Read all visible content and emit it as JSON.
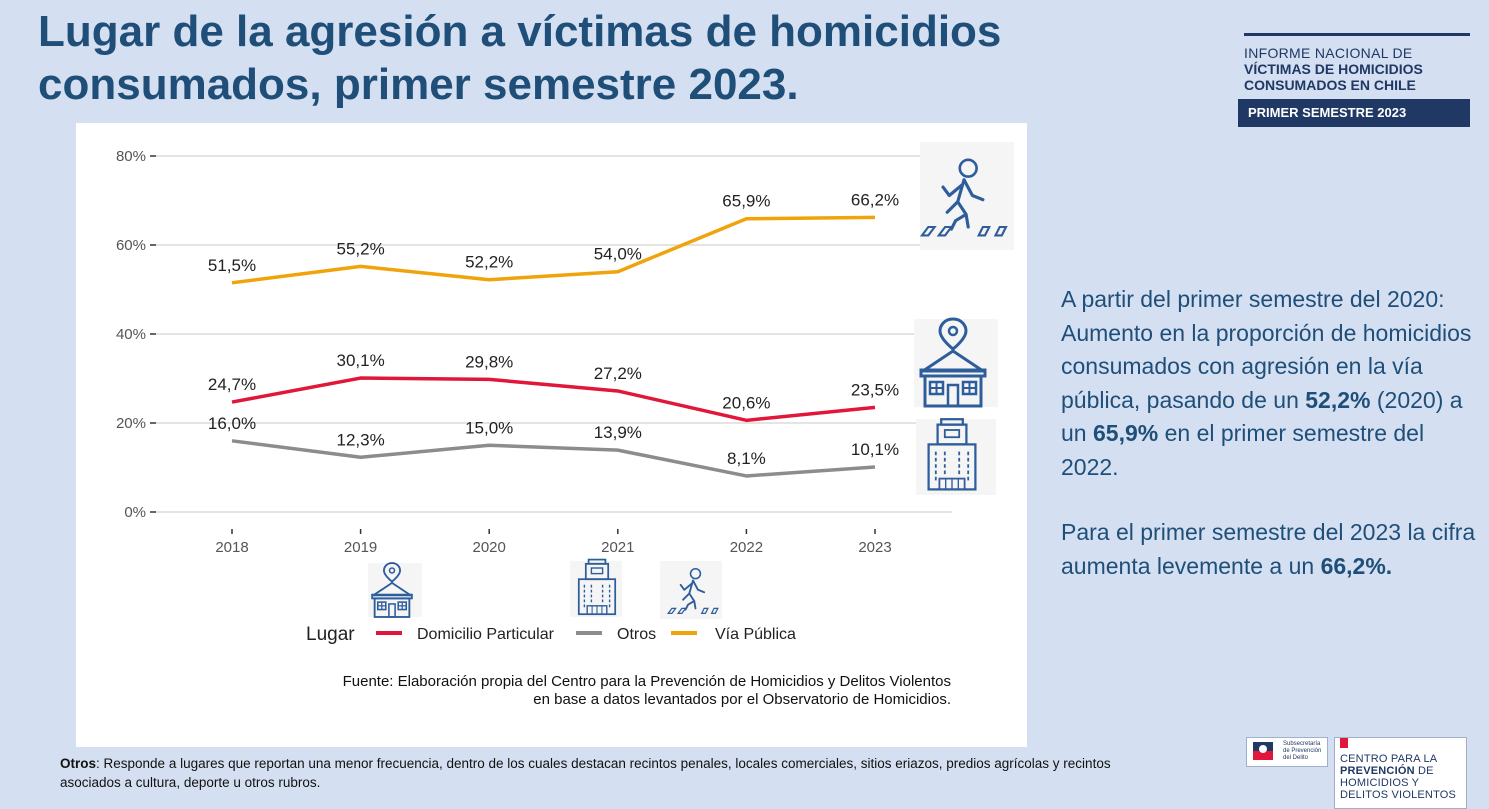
{
  "title": "Lugar de la agresión a víctimas de homicidios consumados, primer semestre 2023.",
  "report": {
    "line1": "INFORME NACIONAL DE",
    "line2": "VÍCTIMAS DE HOMICIDIOS",
    "line3": "CONSUMADOS EN CHILE",
    "badge": "PRIMER SEMESTRE 2023"
  },
  "chart_data": {
    "type": "line",
    "categories": [
      "2018",
      "2019",
      "2020",
      "2021",
      "2022",
      "2023"
    ],
    "ylim": [
      0,
      80
    ],
    "yticks": [
      0,
      20,
      40,
      60,
      80
    ],
    "ytick_labels": [
      "0%",
      "20%",
      "40%",
      "60%",
      "80%"
    ],
    "legend_title": "Lugar",
    "legend_position": "bottom",
    "series": [
      {
        "name": "Domicilio Particular",
        "color": "#e0173a",
        "values": [
          24.7,
          30.1,
          29.8,
          27.2,
          20.6,
          23.5
        ],
        "labels": [
          "24,7%",
          "30,1%",
          "29,8%",
          "27,2%",
          "20,6%",
          "23,5%"
        ]
      },
      {
        "name": "Otros",
        "color": "#8c8c8c",
        "values": [
          16.0,
          12.3,
          15.0,
          13.9,
          8.1,
          10.1
        ],
        "labels": [
          "16,0%",
          "12,3%",
          "15,0%",
          "13,9%",
          "8,1%",
          "10,1%"
        ]
      },
      {
        "name": "Vía Pública",
        "color": "#f0a30a",
        "values": [
          51.5,
          55.2,
          52.2,
          54.0,
          65.9,
          66.2
        ],
        "labels": [
          "51,5%",
          "55,2%",
          "52,2%",
          "54,0%",
          "65,9%",
          "66,2%"
        ]
      }
    ],
    "source_line1": "Fuente: Elaboración propia del Centro para la Prevención de Homicidios y Delitos Violentos",
    "source_line2": "en base a datos levantados por el Observatorio de Homicidios."
  },
  "side": {
    "p1_a": "A partir del primer semestre del 2020: Aumento en la proporción de homicidios consumados con agresión en la vía pública, pasando de un ",
    "p1_b": "52,2%",
    "p1_c": " (2020) a un ",
    "p1_d": "65,9%",
    "p1_e": " en el primer semestre del 2022.",
    "p2_a": "Para el primer semestre del 2023 la cifra aumenta levemente a un ",
    "p2_b": "66,2%."
  },
  "footnote": {
    "label": "Otros",
    "text": ": Responde a lugares que reportan una menor frecuencia, dentro de los cuales destacan recintos penales, locales comerciales, sitios eriazos, predios agrícolas y recintos asociados a cultura, deporte u otros rubros."
  },
  "logos": {
    "sub_line1": "Subsecretaría",
    "sub_line2": "de Prevención",
    "sub_line3": "del Delito",
    "centro_line1": "CENTRO PARA LA",
    "centro_line2a": "PREVENCIÓN",
    "centro_line2b": " DE",
    "centro_line3": "HOMICIDIOS Y",
    "centro_line4": "DELITOS VIOLENTOS"
  },
  "colors": {
    "background": "#d4e0f1",
    "title": "#1f4e79",
    "navy": "#1f3864",
    "icon_blue": "#2e5d9c"
  }
}
